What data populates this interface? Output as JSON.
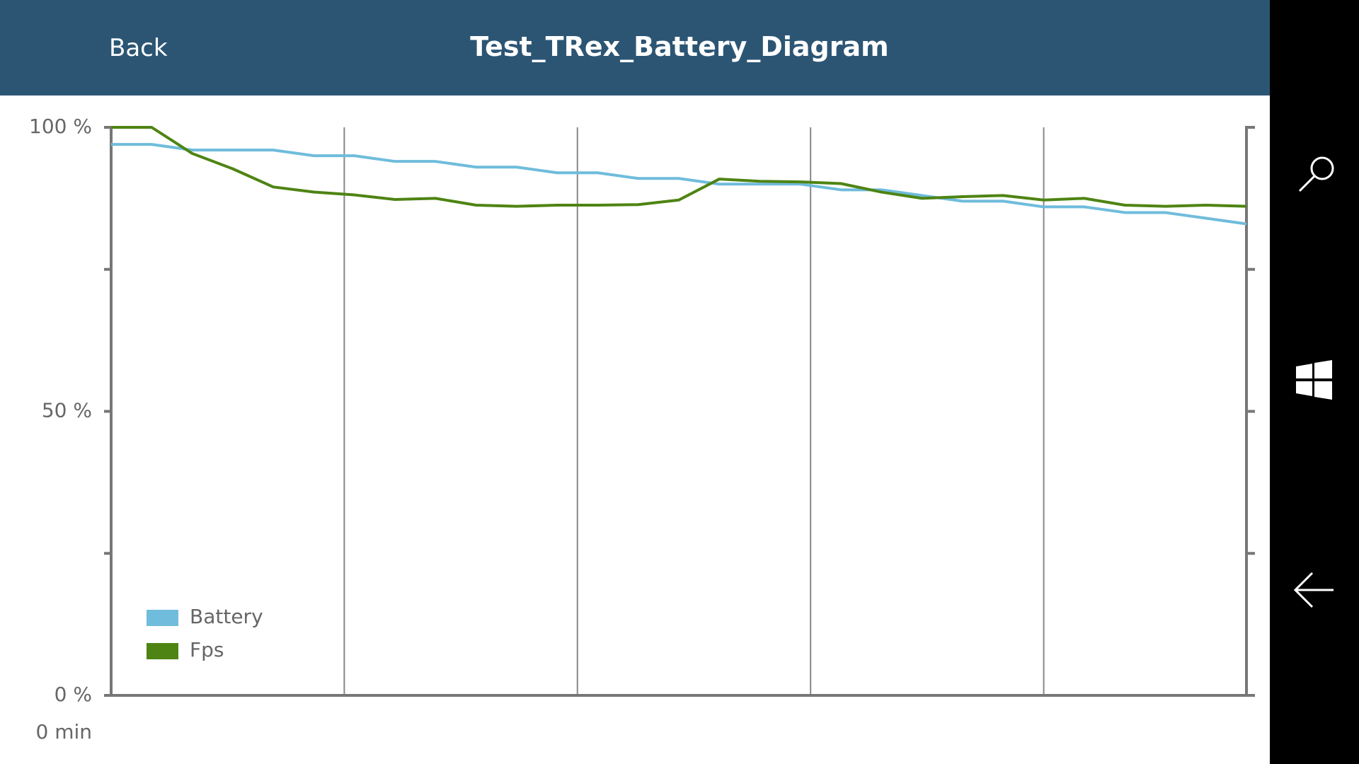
{
  "header": {
    "back": "Back",
    "title": "Test_TRex_Battery_Diagram"
  },
  "chart_data": {
    "type": "line",
    "x": [
      0,
      1,
      2,
      3,
      4,
      5,
      6,
      7,
      8,
      9,
      10,
      11,
      12,
      13,
      14,
      15,
      16,
      17,
      18,
      19,
      20,
      21,
      22,
      23,
      24,
      25,
      26,
      27,
      28
    ],
    "xlim": [
      0,
      28
    ],
    "xticks": [
      {
        "value": 0,
        "label": "0 min"
      }
    ],
    "xgrid": [
      5.75,
      11.5,
      17.25,
      23
    ],
    "ylim": [
      0,
      100
    ],
    "yticks": [
      {
        "value": 0,
        "label": "0 %"
      },
      {
        "value": 50,
        "label": "50 %"
      },
      {
        "value": 100,
        "label": "100 %"
      }
    ],
    "minor_yticks": [
      25,
      75
    ],
    "grid": true,
    "legend": "lower left",
    "series": [
      {
        "name": "Battery",
        "color": "#6fbcdc",
        "values": [
          97,
          97,
          96,
          96,
          96,
          95,
          95,
          94,
          94,
          93,
          93,
          92,
          92,
          91,
          91,
          90,
          90,
          90,
          89,
          89,
          88,
          87,
          87,
          86,
          86,
          85,
          85,
          84,
          83
        ]
      },
      {
        "name": "Fps",
        "color": "#4e8413",
        "values": [
          100,
          100,
          95.4,
          92.7,
          89.5,
          88.6,
          88.1,
          87.3,
          87.5,
          86.3,
          86.1,
          86.3,
          86.3,
          86.4,
          87.2,
          90.9,
          90.5,
          90.4,
          90.1,
          88.6,
          87.5,
          87.8,
          88.0,
          87.2,
          87.5,
          86.3,
          86.1,
          86.3,
          86.1
        ]
      }
    ]
  }
}
